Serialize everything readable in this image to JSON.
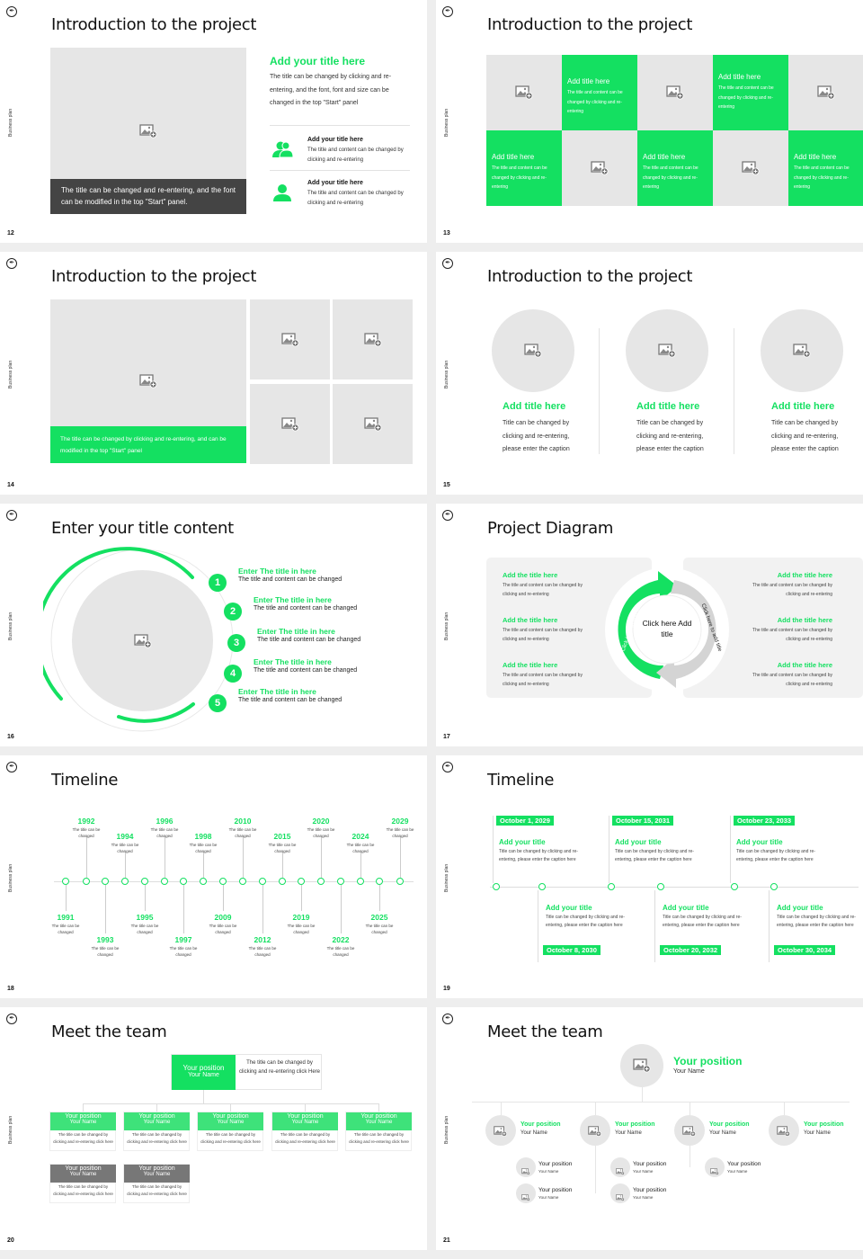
{
  "colors": {
    "accent": "#14e061",
    "placeholder": "#e6e6e6",
    "dark": "#444444"
  },
  "common": {
    "side_label": "Business plan",
    "logo_icon": "pen-nib-logo-icon",
    "image_icon": "image-placeholder-icon"
  },
  "slides": [
    {
      "page": "12",
      "title": "Introduction to the project",
      "caption": "The title can be changed and re-entering, and the font can be modified in the top \"Start\" panel.",
      "heading": "Add your title here",
      "paragraph": "The title can be changed by clicking and re-entering, and the font, font and size can be changed in the top \"Start\" panel",
      "items": [
        {
          "icon": "users-icon",
          "title": "Add your title here",
          "text": "The title and content can be changed by clicking and re-entering"
        },
        {
          "icon": "user-icon",
          "title": "Add your title here",
          "text": "The title and content can be changed by clicking and re-entering"
        }
      ]
    },
    {
      "page": "13",
      "title": "Introduction to the project",
      "cells": [
        {
          "title": "Add title here",
          "text": "The title and content can be changed by clicking and re-entering"
        },
        {
          "title": "Add title here",
          "text": "The title and content can be changed by clicking and re-entering"
        },
        {
          "title": "Add title here",
          "text": "The title and content can be changed by clicking and re-entering"
        },
        {
          "title": "Add title here",
          "text": "The title and content can be changed by clicking and re-entering"
        },
        {
          "title": "Add title here",
          "text": "The title and content can be changed by clicking and re-entering"
        }
      ]
    },
    {
      "page": "14",
      "title": "Introduction to the project",
      "caption": "The title can be changed by clicking and re-entering, and can be modified in the top \"Start\" panel"
    },
    {
      "page": "15",
      "title": "Introduction to the project",
      "columns": [
        {
          "title": "Add title here",
          "text": "Title can be changed by clicking and re-entering, please enter the caption"
        },
        {
          "title": "Add title here",
          "text": "Title can be changed by clicking and re-entering, please enter the caption"
        },
        {
          "title": "Add title here",
          "text": "Title can be changed by clicking and re-entering, please enter the caption"
        }
      ]
    },
    {
      "page": "16",
      "title": "Enter your title content",
      "items": [
        {
          "num": "1",
          "title": "Enter The title in here",
          "text": "The title and content can be changed"
        },
        {
          "num": "2",
          "title": "Enter The title in here",
          "text": "The title and content can be changed"
        },
        {
          "num": "3",
          "title": "Enter The title in here",
          "text": "The title and content can be changed"
        },
        {
          "num": "4",
          "title": "Enter The title in here",
          "text": "The title and content can be changed"
        },
        {
          "num": "5",
          "title": "Enter The title in here",
          "text": "The title and content can be changed"
        }
      ]
    },
    {
      "page": "17",
      "title": "Project Diagram",
      "center": "Click here Add title",
      "arc_left": "Click here to add title",
      "arc_right": "Click here to add title",
      "items": [
        {
          "title": "Add the title here",
          "text": "The title and content can be changed by clicking and re-entering"
        },
        {
          "title": "Add the title here",
          "text": "The title and content can be changed by clicking and re-entering"
        },
        {
          "title": "Add the title here",
          "text": "The title and content can be changed by clicking and re-entering"
        },
        {
          "title": "Add the title here",
          "text": "The title and content can be changed by clicking and re-entering"
        },
        {
          "title": "Add the title here",
          "text": "The title and content can be changed by clicking and re-entering"
        },
        {
          "title": "Add the title here",
          "text": "The title and content can be changed by clicking and re-entering"
        }
      ]
    },
    {
      "page": "18",
      "title": "Timeline",
      "events": [
        {
          "year": "1991",
          "text": "The title can be changed"
        },
        {
          "year": "1992",
          "text": "The title can be changed"
        },
        {
          "year": "1993",
          "text": "The title can be changed"
        },
        {
          "year": "1994",
          "text": "The title can be changed"
        },
        {
          "year": "1995",
          "text": "The title can be changed"
        },
        {
          "year": "1996",
          "text": "The title can be changed"
        },
        {
          "year": "1997",
          "text": "The title can be changed"
        },
        {
          "year": "1998",
          "text": "The title can be changed"
        },
        {
          "year": "2009",
          "text": "The title can be changed"
        },
        {
          "year": "2010",
          "text": "The title can be changed"
        },
        {
          "year": "2012",
          "text": "The title can be changed"
        },
        {
          "year": "2015",
          "text": "The title can be changed"
        },
        {
          "year": "2019",
          "text": "The title can be changed"
        },
        {
          "year": "2020",
          "text": "The title can be changed"
        },
        {
          "year": "2022",
          "text": "The title can be changed"
        },
        {
          "year": "2024",
          "text": "The title can be changed"
        },
        {
          "year": "2025",
          "text": "The title can be changed"
        },
        {
          "year": "2029",
          "text": "The title can be changed"
        }
      ]
    },
    {
      "page": "19",
      "title": "Timeline",
      "events": [
        {
          "date": "October 1, 2029",
          "title": "Add your title",
          "text": "Title can be changed by clicking and re-entering, please enter the caption here"
        },
        {
          "date": "October 8, 2030",
          "title": "Add your title",
          "text": "Title can be changed by clicking and re-entering, please enter the caption here"
        },
        {
          "date": "October 15, 2031",
          "title": "Add your title",
          "text": "Title can be changed by clicking and re-entering, please enter the caption here"
        },
        {
          "date": "October 20, 2032",
          "title": "Add your title",
          "text": "Title can be changed by clicking and re-entering, please enter the caption here"
        },
        {
          "date": "October 23, 2033",
          "title": "Add your title",
          "text": "Title can be changed by clicking and re-entering, please enter the caption here"
        },
        {
          "date": "October 30, 2034",
          "title": "Add your title",
          "text": "Title can be changed by clicking and re-entering, please enter the caption here"
        }
      ]
    },
    {
      "page": "20",
      "title": "Meet the team",
      "top": {
        "position": "Your position",
        "name": "Your Name",
        "text": "The title can be changed by clicking and re-entering click Here"
      },
      "members": [
        {
          "position": "Your position",
          "name": "Your Name",
          "text": "The title can be changed by clicking and re-entering click here"
        },
        {
          "position": "Your position",
          "name": "Your Name",
          "text": "The title can be changed by clicking and re-entering click here"
        },
        {
          "position": "Your position",
          "name": "Your Name",
          "text": "The title can be changed by clicking and re-entering click here"
        },
        {
          "position": "Your position",
          "name": "Your Name",
          "text": "The title can be changed by clicking and re-entering click here"
        },
        {
          "position": "Your position",
          "name": "Your Name",
          "text": "The title can be changed by clicking and re-entering click here"
        },
        {
          "position": "Your position",
          "name": "Your Name",
          "text": "The title can be changed by clicking and re-entering click here"
        },
        {
          "position": "Your position",
          "name": "Your Name",
          "text": "The title can be changed by clicking and re-entering click here"
        }
      ]
    },
    {
      "page": "21",
      "title": "Meet the team",
      "top": {
        "position": "Your position",
        "name": "Your Name"
      },
      "level2": [
        {
          "position": "Your position",
          "name": "Your Name"
        },
        {
          "position": "Your position",
          "name": "Your Name"
        },
        {
          "position": "Your position",
          "name": "Your Name"
        },
        {
          "position": "Your position",
          "name": "Your Name"
        }
      ],
      "level3": [
        {
          "position": "Your position",
          "name": "Your Name"
        },
        {
          "position": "Your position",
          "name": "Your Name"
        },
        {
          "position": "Your position",
          "name": "Your Name"
        },
        {
          "position": "Your position",
          "name": "Your Name"
        },
        {
          "position": "Your position",
          "name": "Your Name"
        }
      ]
    }
  ]
}
